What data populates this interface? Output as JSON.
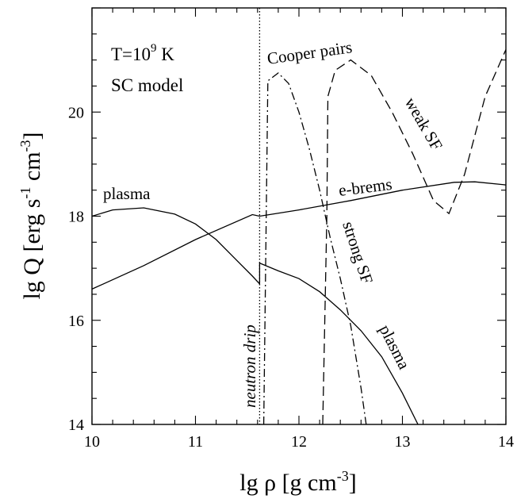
{
  "chart_data": {
    "type": "line",
    "xlabel": "lg ρ  [g cm",
    "xlabel_exp": "-3",
    "xlabel_close": "]",
    "ylabel": "lg Q  [erg s",
    "ylabel_exp1": "-1",
    "ylabel_mid": " cm",
    "ylabel_exp2": "-3",
    "ylabel_close": "]",
    "xlim": [
      10,
      14
    ],
    "ylim": [
      14,
      22
    ],
    "x_ticks": [
      "10",
      "11",
      "12",
      "13",
      "14"
    ],
    "y_ticks": [
      "14",
      "16",
      "18",
      "20"
    ],
    "grid": false,
    "legend": "none",
    "annotations": {
      "temp_prefix": "T=10",
      "temp_exp": "9",
      "temp_suffix": " K",
      "model": "SC model",
      "cooper": "Cooper pairs",
      "weak": "weak SF",
      "strong": "strong SF",
      "ebrems": "e-brems",
      "plasma_top": "plasma",
      "plasma_bottom": "plasma",
      "ndrip": "neutron drip"
    },
    "neutron_drip_x": 11.62,
    "series": [
      {
        "key": "plasma",
        "style": "solid",
        "x": [
          10.0,
          10.2,
          10.5,
          10.8,
          11.0,
          11.2,
          11.4,
          11.55,
          11.62,
          11.62,
          11.8,
          12.0,
          12.2,
          12.4,
          12.6,
          12.8,
          13.0,
          13.15
        ],
        "y": [
          18.0,
          18.12,
          18.16,
          18.04,
          17.85,
          17.55,
          17.15,
          16.85,
          16.7,
          17.1,
          16.95,
          16.8,
          16.55,
          16.2,
          15.8,
          15.3,
          14.6,
          14.0
        ]
      },
      {
        "key": "e-brems",
        "style": "solid",
        "x": [
          10.0,
          10.5,
          11.0,
          11.55,
          11.62,
          12.0,
          12.5,
          13.0,
          13.5,
          13.7,
          14.0
        ],
        "y": [
          16.6,
          17.05,
          17.55,
          18.03,
          18.0,
          18.12,
          18.3,
          18.5,
          18.65,
          18.66,
          18.6
        ]
      },
      {
        "key": "strong-SF",
        "style": "dashdot",
        "x": [
          11.66,
          11.7,
          11.8,
          11.9,
          12.0,
          12.1,
          12.2,
          12.3,
          12.4,
          12.5,
          12.6,
          12.65
        ],
        "y": [
          14.0,
          20.6,
          20.75,
          20.55,
          20.0,
          19.3,
          18.5,
          17.6,
          16.8,
          15.9,
          14.7,
          14.0
        ]
      },
      {
        "key": "weak-SF",
        "style": "dashed",
        "x": [
          12.23,
          12.27,
          12.28,
          12.35,
          12.5,
          12.7,
          12.9,
          13.1,
          13.3,
          13.45,
          13.6,
          13.8,
          14.0
        ],
        "y": [
          14.0,
          18.0,
          20.3,
          20.8,
          21.0,
          20.7,
          20.0,
          19.2,
          18.3,
          18.05,
          18.8,
          20.3,
          21.2
        ]
      }
    ]
  }
}
